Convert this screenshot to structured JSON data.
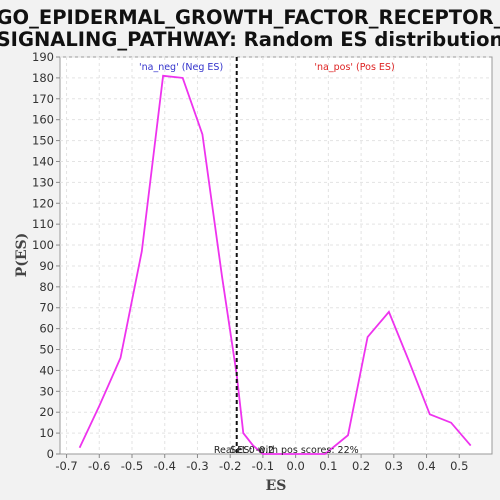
{
  "chart_data": {
    "type": "line",
    "title_line1": "GO_EPIDERMAL_GROWTH_FACTOR_RECEPTOR_",
    "title_line2": "SIGNALING_PATHWAY: Random ES distribution",
    "xlabel": "ES",
    "ylabel": "P(ES)",
    "xlim": [
      -0.72,
      0.6
    ],
    "ylim": [
      0,
      190
    ],
    "x_ticks": [
      -0.7,
      -0.6,
      -0.5,
      -0.4,
      -0.3,
      -0.2,
      -0.1,
      0.0,
      0.1,
      0.2,
      0.3,
      0.4,
      0.5
    ],
    "x_tick_labels": [
      "-0.7",
      "-0.6",
      "-0.5",
      "-0.4",
      "-0.3",
      "-0.2",
      "-0.1",
      "0.0",
      "0.1",
      "0.2",
      "0.3",
      "0.4",
      "0.5"
    ],
    "y_ticks": [
      0,
      10,
      20,
      30,
      40,
      50,
      60,
      70,
      80,
      90,
      100,
      110,
      120,
      130,
      140,
      150,
      160,
      170,
      180,
      190
    ],
    "y_tick_labels": [
      "0",
      "10",
      "20",
      "30",
      "40",
      "50",
      "60",
      "70",
      "80",
      "90",
      "100",
      "110",
      "120",
      "130",
      "140",
      "150",
      "160",
      "170",
      "180",
      "190"
    ],
    "grid": true,
    "series": [
      {
        "color": "#ee33ee",
        "x": [
          -0.66,
          -0.6,
          -0.535,
          -0.47,
          -0.405,
          -0.345,
          -0.285,
          -0.225,
          -0.18,
          -0.16,
          -0.13,
          -0.1,
          0.09,
          0.16,
          0.22,
          0.285,
          0.345,
          0.41,
          0.475,
          0.535
        ],
        "y": [
          3,
          23,
          46,
          97,
          181,
          180,
          153,
          85,
          38,
          10,
          4,
          0,
          0,
          9,
          56,
          68,
          45,
          19,
          15,
          4
        ]
      }
    ],
    "real_es": {
      "x": -0.18,
      "label": "Real ES: -0.2"
    },
    "annotations": {
      "neg_label": "'na_neg' (Neg ES)",
      "neg_color": "#3333cc",
      "pos_label": "'na_pos' (Pos ES)",
      "pos_color": "#dd2222",
      "pos_scores_label": "Set 0 with pos scores: 22%"
    }
  }
}
